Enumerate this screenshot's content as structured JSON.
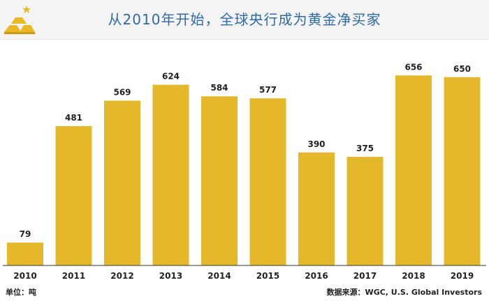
{
  "header": {
    "title": "从2010年开始，全球央行成为黄金净买家"
  },
  "colors": {
    "bar": "#e5b82c",
    "title": "#2e6aa8",
    "logo": "#e8b825",
    "axis": "#333333",
    "label": "#222222"
  },
  "icons": {
    "logo": "gold-bars-icon"
  },
  "chart_data": {
    "type": "bar",
    "categories": [
      "2010",
      "2011",
      "2012",
      "2013",
      "2014",
      "2015",
      "2016",
      "2017",
      "2018",
      "2019"
    ],
    "values": [
      79,
      481,
      569,
      624,
      584,
      577,
      390,
      375,
      656,
      650
    ],
    "title": "从2010年开始，全球央行成为黄金净买家",
    "xlabel": "",
    "ylabel": "",
    "ylim": [
      0,
      700
    ],
    "grid": false,
    "legend": "none"
  },
  "footer": {
    "unit": "单位：吨",
    "source": "数据来源：WGC, U.S. Global Investors"
  }
}
